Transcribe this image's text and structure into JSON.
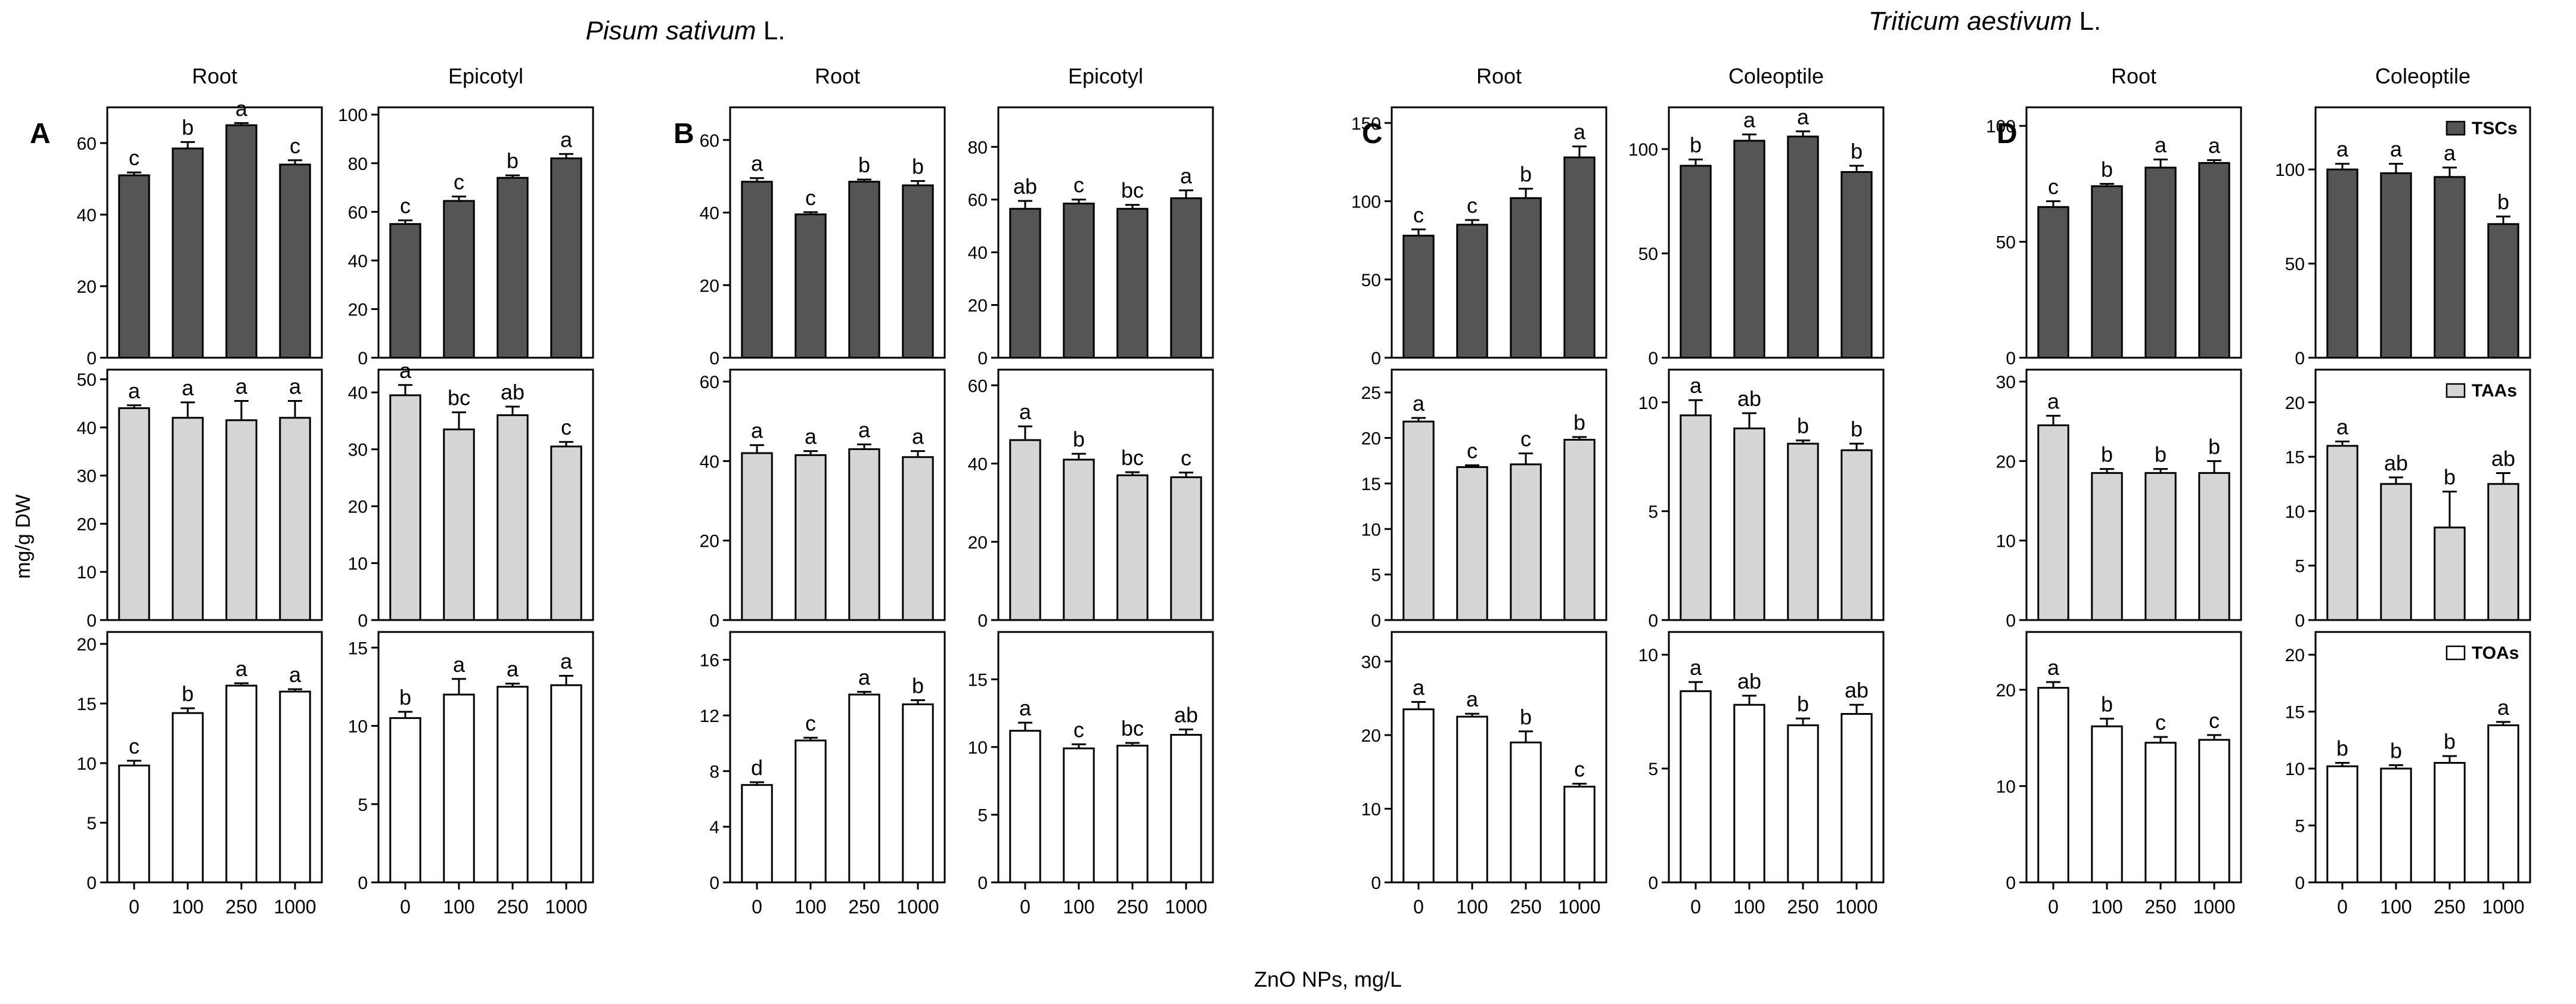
{
  "figure": {
    "species_labels": [
      {
        "italic": "Pisum sativum",
        "suffix": " L."
      },
      {
        "italic": "Triticum aestivum",
        "suffix": " L."
      }
    ],
    "y_axis_label": "mg/g DW",
    "x_axis_label": "ZnO NPs, mg/L",
    "categories": [
      "0",
      "100",
      "250",
      "1000"
    ],
    "legend": [
      {
        "label": "TSCs",
        "fill": "#555555"
      },
      {
        "label": "TAAs",
        "fill": "#d6d6d6"
      },
      {
        "label": "TOAs",
        "fill": "#ffffff"
      }
    ]
  },
  "chart_data": [
    {
      "type": "bar",
      "group": "A",
      "panel": "Root",
      "row": "TSCs",
      "categories": [
        "0",
        "100",
        "250",
        "1000"
      ],
      "values": [
        51,
        58.5,
        65,
        54
      ],
      "errors": [
        0.8,
        1.8,
        0.6,
        1.2
      ],
      "letters": [
        "c",
        "b",
        "a",
        "c"
      ],
      "ylim": [
        0,
        70
      ],
      "yticks": [
        0,
        20,
        40,
        60
      ],
      "ylabel": "mg/g DW",
      "xlabel": "ZnO NPs, mg/L"
    },
    {
      "type": "bar",
      "group": "A",
      "panel": "Root",
      "row": "TAAs",
      "categories": [
        "0",
        "100",
        "250",
        "1000"
      ],
      "values": [
        44,
        42,
        41.5,
        42
      ],
      "errors": [
        0.6,
        3.2,
        4,
        3.5
      ],
      "letters": [
        "a",
        "a",
        "a",
        "a"
      ],
      "ylim": [
        0,
        52
      ],
      "yticks": [
        0,
        10,
        20,
        30,
        40,
        50
      ],
      "ylabel": "mg/g DW",
      "xlabel": "ZnO NPs, mg/L"
    },
    {
      "type": "bar",
      "group": "A",
      "panel": "Root",
      "row": "TOAs",
      "categories": [
        "0",
        "100",
        "250",
        "1000"
      ],
      "values": [
        9.8,
        14.2,
        16.5,
        16
      ],
      "errors": [
        0.4,
        0.4,
        0.2,
        0.2
      ],
      "letters": [
        "c",
        "b",
        "a",
        "a"
      ],
      "ylim": [
        0,
        21
      ],
      "yticks": [
        0,
        5,
        10,
        15,
        20
      ],
      "ylabel": "mg/g DW",
      "xlabel": "ZnO NPs, mg/L"
    },
    {
      "type": "bar",
      "group": "A",
      "panel": "Epicotyl",
      "row": "TSCs",
      "categories": [
        "0",
        "100",
        "250",
        "1000"
      ],
      "values": [
        55,
        64.5,
        74,
        82
      ],
      "errors": [
        1.5,
        1.8,
        1,
        1.8
      ],
      "letters": [
        "c",
        "c",
        "b",
        "a"
      ],
      "ylim": [
        0,
        103
      ],
      "yticks": [
        0,
        20,
        40,
        60,
        80,
        100
      ],
      "ylabel": "mg/g DW",
      "xlabel": "ZnO NPs, mg/L"
    },
    {
      "type": "bar",
      "group": "A",
      "panel": "Epicotyl",
      "row": "TAAs",
      "categories": [
        "0",
        "100",
        "250",
        "1000"
      ],
      "values": [
        39.5,
        33.5,
        36,
        30.5
      ],
      "errors": [
        1.8,
        3,
        1.5,
        0.8
      ],
      "letters": [
        "a",
        "bc",
        "ab",
        "c"
      ],
      "ylim": [
        0,
        44
      ],
      "yticks": [
        0,
        10,
        20,
        30,
        40
      ],
      "ylabel": "mg/g DW",
      "xlabel": "ZnO NPs, mg/L"
    },
    {
      "type": "bar",
      "group": "A",
      "panel": "Epicotyl",
      "row": "TOAs",
      "categories": [
        "0",
        "100",
        "250",
        "1000"
      ],
      "values": [
        10.5,
        12,
        12.5,
        12.6
      ],
      "errors": [
        0.4,
        1,
        0.2,
        0.6
      ],
      "letters": [
        "b",
        "a",
        "a",
        "a"
      ],
      "ylim": [
        0,
        16
      ],
      "yticks": [
        0,
        5,
        10,
        15
      ],
      "ylabel": "mg/g DW",
      "xlabel": "ZnO NPs, mg/L"
    },
    {
      "type": "bar",
      "group": "B",
      "panel": "Root",
      "row": "TSCs",
      "categories": [
        "0",
        "100",
        "250",
        "1000"
      ],
      "values": [
        48.5,
        39.5,
        48.5,
        47.5
      ],
      "errors": [
        1,
        0.6,
        0.6,
        1.2
      ],
      "letters": [
        "a",
        "c",
        "b",
        "b"
      ],
      "ylim": [
        0,
        69
      ],
      "yticks": [
        0,
        20,
        40,
        60
      ],
      "ylabel": "mg/g DW",
      "xlabel": "ZnO NPs, mg/L"
    },
    {
      "type": "bar",
      "group": "B",
      "panel": "Root",
      "row": "TAAs",
      "categories": [
        "0",
        "100",
        "250",
        "1000"
      ],
      "values": [
        42,
        41.5,
        43,
        41
      ],
      "errors": [
        2,
        1,
        1.2,
        1.5
      ],
      "letters": [
        "a",
        "a",
        "a",
        "a"
      ],
      "ylim": [
        0,
        63
      ],
      "yticks": [
        0,
        20,
        40,
        60
      ],
      "ylabel": "mg/g DW",
      "xlabel": "ZnO NPs, mg/L"
    },
    {
      "type": "bar",
      "group": "B",
      "panel": "Root",
      "row": "TOAs",
      "categories": [
        "0",
        "100",
        "250",
        "1000"
      ],
      "values": [
        7,
        10.2,
        13.5,
        12.8
      ],
      "errors": [
        0.2,
        0.2,
        0.2,
        0.3
      ],
      "letters": [
        "d",
        "c",
        "a",
        "b"
      ],
      "ylim": [
        0,
        18
      ],
      "yticks": [
        0,
        4,
        8,
        12,
        16
      ],
      "ylabel": "mg/g DW",
      "xlabel": "ZnO NPs, mg/L"
    },
    {
      "type": "bar",
      "group": "B",
      "panel": "Epicotyl",
      "row": "TSCs",
      "categories": [
        "0",
        "100",
        "250",
        "1000"
      ],
      "values": [
        56.5,
        58.5,
        56.5,
        60.5
      ],
      "errors": [
        3,
        1.5,
        1.5,
        3
      ],
      "letters": [
        "ab",
        "c",
        "bc",
        "a"
      ],
      "ylim": [
        0,
        95
      ],
      "yticks": [
        0,
        20,
        40,
        60,
        80
      ],
      "ylabel": "mg/g DW",
      "xlabel": "ZnO NPs, mg/L"
    },
    {
      "type": "bar",
      "group": "B",
      "panel": "Epicotyl",
      "row": "TAAs",
      "categories": [
        "0",
        "100",
        "250",
        "1000"
      ],
      "values": [
        46,
        41,
        37,
        36.5
      ],
      "errors": [
        3.5,
        1.5,
        0.8,
        1.2
      ],
      "letters": [
        "a",
        "b",
        "bc",
        "c"
      ],
      "ylim": [
        0,
        64
      ],
      "yticks": [
        0,
        20,
        40,
        60
      ],
      "ylabel": "mg/g DW",
      "xlabel": "ZnO NPs, mg/L"
    },
    {
      "type": "bar",
      "group": "B",
      "panel": "Epicotyl",
      "row": "TOAs",
      "categories": [
        "0",
        "100",
        "250",
        "1000"
      ],
      "values": [
        11.2,
        9.9,
        10.1,
        10.9
      ],
      "errors": [
        0.6,
        0.3,
        0.2,
        0.4
      ],
      "letters": [
        "a",
        "c",
        "bc",
        "ab"
      ],
      "ylim": [
        0,
        18.5
      ],
      "yticks": [
        0,
        5,
        10,
        15
      ],
      "ylabel": "mg/g DW",
      "xlabel": "ZnO NPs, mg/L"
    },
    {
      "type": "bar",
      "group": "C",
      "panel": "Root",
      "row": "TSCs",
      "categories": [
        "0",
        "100",
        "250",
        "1000"
      ],
      "values": [
        78,
        85,
        102,
        128
      ],
      "errors": [
        4,
        3,
        6,
        7
      ],
      "letters": [
        "c",
        "c",
        "b",
        "a"
      ],
      "ylim": [
        0,
        160
      ],
      "yticks": [
        0,
        50,
        100,
        150
      ],
      "ylabel": "mg/g DW",
      "xlabel": "ZnO NPs, mg/L"
    },
    {
      "type": "bar",
      "group": "C",
      "panel": "Root",
      "row": "TAAs",
      "categories": [
        "0",
        "100",
        "250",
        "1000"
      ],
      "values": [
        21.8,
        16.8,
        17.1,
        19.8
      ],
      "errors": [
        0.4,
        0.2,
        1.2,
        0.3
      ],
      "letters": [
        "a",
        "c",
        "c",
        "b"
      ],
      "ylim": [
        0,
        27.5
      ],
      "yticks": [
        0,
        5,
        10,
        15,
        20,
        25
      ],
      "ylabel": "mg/g DW",
      "xlabel": "ZnO NPs, mg/L"
    },
    {
      "type": "bar",
      "group": "C",
      "panel": "Root",
      "row": "TOAs",
      "categories": [
        "0",
        "100",
        "250",
        "1000"
      ],
      "values": [
        23.5,
        22.5,
        19,
        13
      ],
      "errors": [
        1,
        0.4,
        1.5,
        0.4
      ],
      "letters": [
        "a",
        "a",
        "b",
        "c"
      ],
      "ylim": [
        0,
        34
      ],
      "yticks": [
        0,
        10,
        20,
        30
      ],
      "ylabel": "mg/g DW",
      "xlabel": "ZnO NPs, mg/L"
    },
    {
      "type": "bar",
      "group": "C",
      "panel": "Coleoptile",
      "row": "TSCs",
      "categories": [
        "0",
        "100",
        "250",
        "1000"
      ],
      "values": [
        92,
        104,
        106,
        89
      ],
      "errors": [
        3,
        3,
        2.5,
        3
      ],
      "letters": [
        "b",
        "a",
        "a",
        "b"
      ],
      "ylim": [
        0,
        120
      ],
      "yticks": [
        0,
        50,
        100
      ],
      "ylabel": "mg/g DW",
      "xlabel": "ZnO NPs, mg/L"
    },
    {
      "type": "bar",
      "group": "C",
      "panel": "Coleoptile",
      "row": "TAAs",
      "categories": [
        "0",
        "100",
        "250",
        "1000"
      ],
      "values": [
        9.4,
        8.8,
        8.1,
        7.8
      ],
      "errors": [
        0.7,
        0.7,
        0.15,
        0.3
      ],
      "letters": [
        "a",
        "ab",
        "b",
        "b"
      ],
      "ylim": [
        0,
        11.5
      ],
      "yticks": [
        0,
        5,
        10
      ],
      "ylabel": "mg/g DW",
      "xlabel": "ZnO NPs, mg/L"
    },
    {
      "type": "bar",
      "group": "C",
      "panel": "Coleoptile",
      "row": "TOAs",
      "categories": [
        "0",
        "100",
        "250",
        "1000"
      ],
      "values": [
        8.4,
        7.8,
        6.9,
        7.4
      ],
      "errors": [
        0.4,
        0.4,
        0.3,
        0.4
      ],
      "letters": [
        "a",
        "ab",
        "b",
        "ab"
      ],
      "ylim": [
        0,
        11
      ],
      "yticks": [
        0,
        5,
        10
      ],
      "ylabel": "mg/g DW",
      "xlabel": "ZnO NPs, mg/L"
    },
    {
      "type": "bar",
      "group": "D",
      "panel": "Root",
      "row": "TSCs",
      "categories": [
        "0",
        "100",
        "250",
        "1000"
      ],
      "values": [
        65,
        74,
        82,
        84
      ],
      "errors": [
        2.5,
        1,
        3.5,
        1.2
      ],
      "letters": [
        "c",
        "b",
        "a",
        "a"
      ],
      "ylim": [
        0,
        108
      ],
      "yticks": [
        0,
        50,
        100
      ],
      "ylabel": "mg/g DW",
      "xlabel": "ZnO NPs, mg/L"
    },
    {
      "type": "bar",
      "group": "D",
      "panel": "Root",
      "row": "TAAs",
      "categories": [
        "0",
        "100",
        "250",
        "1000"
      ],
      "values": [
        24.5,
        18.5,
        18.5,
        18.5
      ],
      "errors": [
        1.2,
        0.5,
        0.5,
        1.5
      ],
      "letters": [
        "a",
        "b",
        "b",
        "b"
      ],
      "ylim": [
        0,
        31.5
      ],
      "yticks": [
        0,
        10,
        20,
        30
      ],
      "ylabel": "mg/g DW",
      "xlabel": "ZnO NPs, mg/L"
    },
    {
      "type": "bar",
      "group": "D",
      "panel": "Root",
      "row": "TOAs",
      "categories": [
        "0",
        "100",
        "250",
        "1000"
      ],
      "values": [
        20.2,
        16.2,
        14.5,
        14.8
      ],
      "errors": [
        0.6,
        0.8,
        0.6,
        0.5
      ],
      "letters": [
        "a",
        "b",
        "c",
        "c"
      ],
      "ylim": [
        0,
        26
      ],
      "yticks": [
        0,
        10,
        20
      ],
      "ylabel": "mg/g DW",
      "xlabel": "ZnO NPs, mg/L"
    },
    {
      "type": "bar",
      "group": "D",
      "panel": "Coleoptile",
      "row": "TSCs",
      "categories": [
        "0",
        "100",
        "250",
        "1000"
      ],
      "values": [
        100,
        98,
        96,
        71
      ],
      "errors": [
        3,
        5,
        5,
        4
      ],
      "letters": [
        "a",
        "a",
        "a",
        "b"
      ],
      "ylim": [
        0,
        133
      ],
      "yticks": [
        0,
        50,
        100
      ],
      "ylabel": "mg/g DW",
      "xlabel": "ZnO NPs, mg/L"
    },
    {
      "type": "bar",
      "group": "D",
      "panel": "Coleoptile",
      "row": "TAAs",
      "categories": [
        "0",
        "100",
        "250",
        "1000"
      ],
      "values": [
        16,
        12.5,
        8.5,
        12.5
      ],
      "errors": [
        0.4,
        0.6,
        3.3,
        1
      ],
      "letters": [
        "a",
        "ab",
        "b",
        "ab"
      ],
      "ylim": [
        0,
        23
      ],
      "yticks": [
        0,
        5,
        10,
        15,
        20
      ],
      "ylabel": "mg/g DW",
      "xlabel": "ZnO NPs, mg/L"
    },
    {
      "type": "bar",
      "group": "D",
      "panel": "Coleoptile",
      "row": "TOAs",
      "categories": [
        "0",
        "100",
        "250",
        "1000"
      ],
      "values": [
        10.2,
        10,
        10.5,
        13.8
      ],
      "errors": [
        0.3,
        0.3,
        0.6,
        0.3
      ],
      "letters": [
        "b",
        "b",
        "b",
        "a"
      ],
      "ylim": [
        0,
        22
      ],
      "yticks": [
        0,
        5,
        10,
        15,
        20
      ],
      "ylabel": "mg/g DW",
      "xlabel": "ZnO NPs, mg/L"
    }
  ]
}
